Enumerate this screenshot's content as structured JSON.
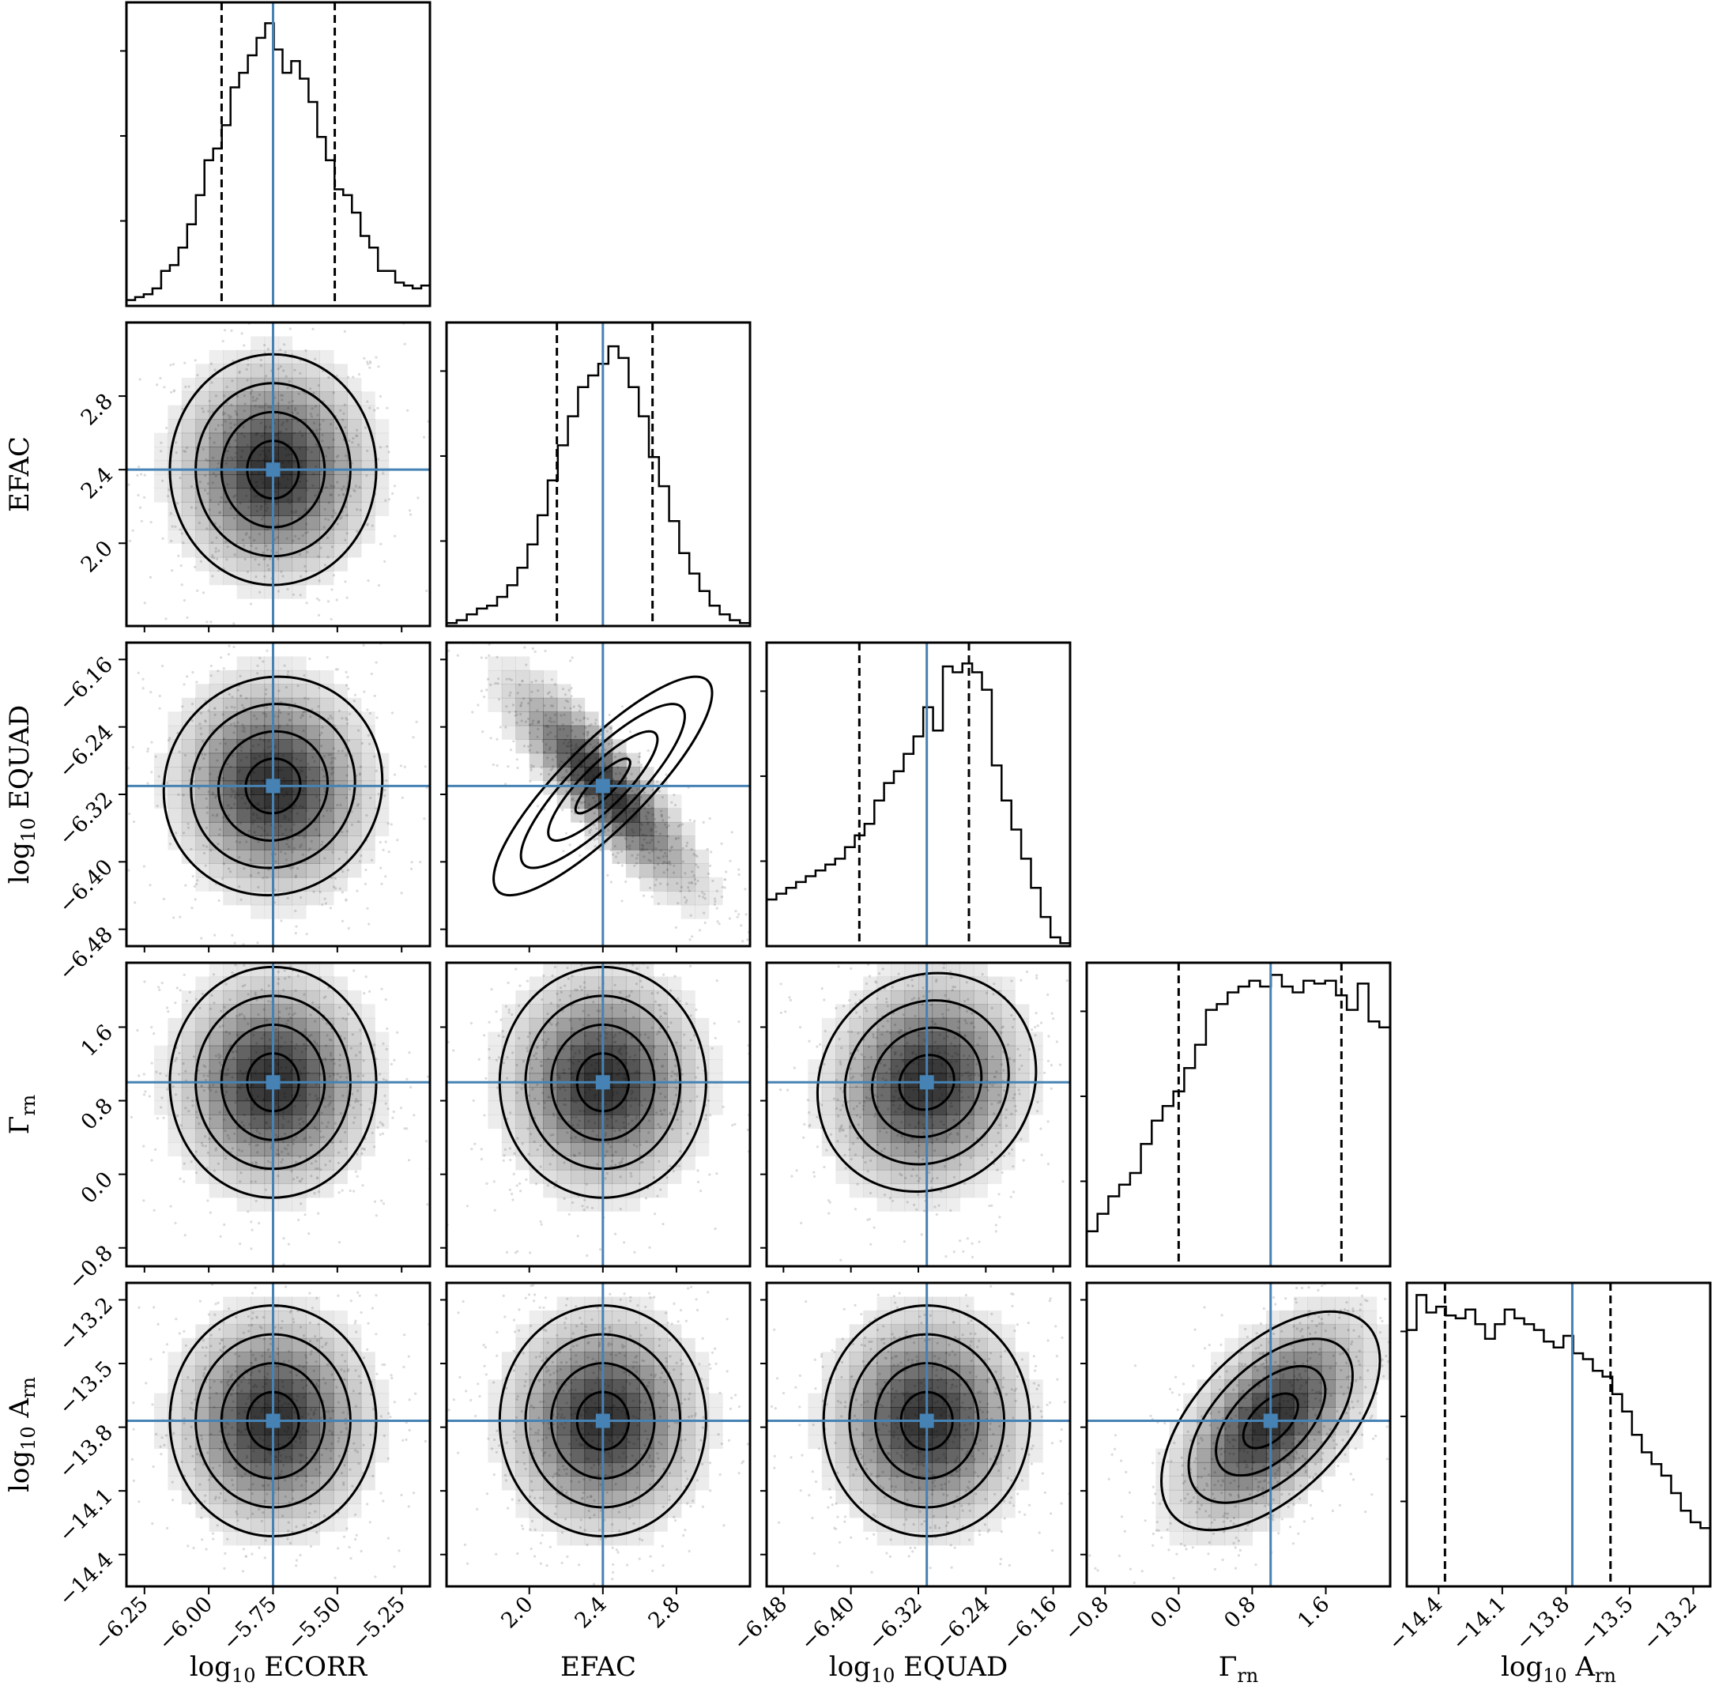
{
  "chart_data": {
    "type": "corner",
    "parameters": [
      {
        "key": "ECORR",
        "label_main": "log",
        "label_sub": "10",
        "label_rest": " ECORR",
        "label_rest_sub": "",
        "range": [
          -6.32,
          -5.14
        ],
        "ticks": [
          -6.25,
          -6.0,
          -5.75,
          -5.5,
          -5.25
        ],
        "tick_labels": [
          "−6.25",
          "−6.00",
          "−5.75",
          "−5.50",
          "−5.25"
        ],
        "truth": -5.75,
        "q16": -5.95,
        "q84": -5.51
      },
      {
        "key": "EFAC",
        "label_main": "EFAC",
        "label_sub": "",
        "label_rest": "",
        "label_rest_sub": "",
        "range": [
          1.55,
          3.2
        ],
        "ticks": [
          2.0,
          2.4,
          2.8
        ],
        "tick_labels": [
          "2.0",
          "2.4",
          "2.8"
        ],
        "truth": 2.4,
        "q16": 2.15,
        "q84": 2.67
      },
      {
        "key": "EQUAD",
        "label_main": "log",
        "label_sub": "10",
        "label_rest": " EQUAD",
        "label_rest_sub": "",
        "range": [
          -6.5,
          -6.14
        ],
        "ticks": [
          -6.48,
          -6.4,
          -6.32,
          -6.24,
          -6.16
        ],
        "tick_labels": [
          "−6.48",
          "−6.40",
          "−6.32",
          "−6.24",
          "−6.16"
        ],
        "truth": -6.31,
        "q16": -6.39,
        "q84": -6.26
      },
      {
        "key": "gamma",
        "label_main": "Γ",
        "label_sub": "rn",
        "label_rest": "",
        "label_rest_sub": "",
        "range": [
          -1.0,
          2.3
        ],
        "ticks": [
          -0.8,
          0.0,
          0.8,
          1.6
        ],
        "tick_labels": [
          "−0.8",
          "0.0",
          "0.8",
          "1.6"
        ],
        "truth": 1.0,
        "q16": 0.0,
        "q84": 1.77
      },
      {
        "key": "A",
        "label_main": "log",
        "label_sub": "10",
        "label_rest": " A",
        "label_rest_sub": "rn",
        "range": [
          -14.55,
          -13.12
        ],
        "ticks": [
          -14.4,
          -14.1,
          -13.8,
          -13.5,
          -13.2
        ],
        "tick_labels": [
          "−14.4",
          "−14.1",
          "−13.8",
          "−13.5",
          "−13.2"
        ],
        "truth": -13.77,
        "q16": -14.37,
        "q84": -13.59
      }
    ],
    "histograms": [
      [
        0.02,
        0.03,
        0.04,
        0.06,
        0.12,
        0.14,
        0.2,
        0.28,
        0.38,
        0.5,
        0.54,
        0.62,
        0.75,
        0.8,
        0.86,
        0.92,
        0.97,
        0.88,
        0.8,
        0.84,
        0.78,
        0.7,
        0.58,
        0.5,
        0.4,
        0.38,
        0.32,
        0.24,
        0.2,
        0.12,
        0.12,
        0.08,
        0.07,
        0.06,
        0.07
      ],
      [
        0.01,
        0.02,
        0.04,
        0.06,
        0.07,
        0.1,
        0.14,
        0.2,
        0.28,
        0.38,
        0.5,
        0.62,
        0.72,
        0.82,
        0.86,
        0.9,
        0.96,
        0.92,
        0.82,
        0.72,
        0.58,
        0.48,
        0.36,
        0.25,
        0.18,
        0.12,
        0.07,
        0.04,
        0.02,
        0.01
      ],
      [
        0.16,
        0.18,
        0.2,
        0.22,
        0.24,
        0.26,
        0.28,
        0.3,
        0.34,
        0.38,
        0.42,
        0.5,
        0.56,
        0.6,
        0.66,
        0.72,
        0.82,
        0.74,
        0.96,
        0.94,
        0.97,
        0.94,
        0.88,
        0.62,
        0.5,
        0.4,
        0.3,
        0.2,
        0.1,
        0.03,
        0.01
      ],
      [
        0.12,
        0.18,
        0.24,
        0.28,
        0.32,
        0.42,
        0.5,
        0.55,
        0.6,
        0.68,
        0.76,
        0.88,
        0.9,
        0.94,
        0.96,
        0.98,
        0.96,
        1.0,
        0.96,
        0.94,
        0.98,
        0.97,
        0.98,
        0.93,
        0.88,
        0.97,
        0.84,
        0.82
      ],
      [
        0.88,
        1.0,
        0.94,
        0.96,
        0.93,
        0.92,
        0.95,
        0.9,
        0.85,
        0.9,
        0.95,
        0.92,
        0.9,
        0.88,
        0.84,
        0.82,
        0.86,
        0.8,
        0.78,
        0.74,
        0.72,
        0.66,
        0.6,
        0.52,
        0.46,
        0.42,
        0.38,
        0.32,
        0.26,
        0.22,
        0.2
      ]
    ],
    "pairs": [
      {
        "row": 1,
        "col": 0,
        "rho": 0.0
      },
      {
        "row": 2,
        "col": 0,
        "rho": -0.05
      },
      {
        "row": 2,
        "col": 1,
        "rho": -0.85
      },
      {
        "row": 3,
        "col": 0,
        "rho": 0.0
      },
      {
        "row": 3,
        "col": 1,
        "rho": 0.0
      },
      {
        "row": 3,
        "col": 2,
        "rho": 0.1
      },
      {
        "row": 4,
        "col": 0,
        "rho": 0.0
      },
      {
        "row": 4,
        "col": 1,
        "rho": 0.0
      },
      {
        "row": 4,
        "col": 2,
        "rho": 0.0
      },
      {
        "row": 4,
        "col": 3,
        "rho": 0.55
      }
    ],
    "colors": {
      "truth": "#4682b4",
      "hist": "#000000",
      "contour": "#000000",
      "density": "#000000"
    },
    "grid": false,
    "legend": "none"
  }
}
